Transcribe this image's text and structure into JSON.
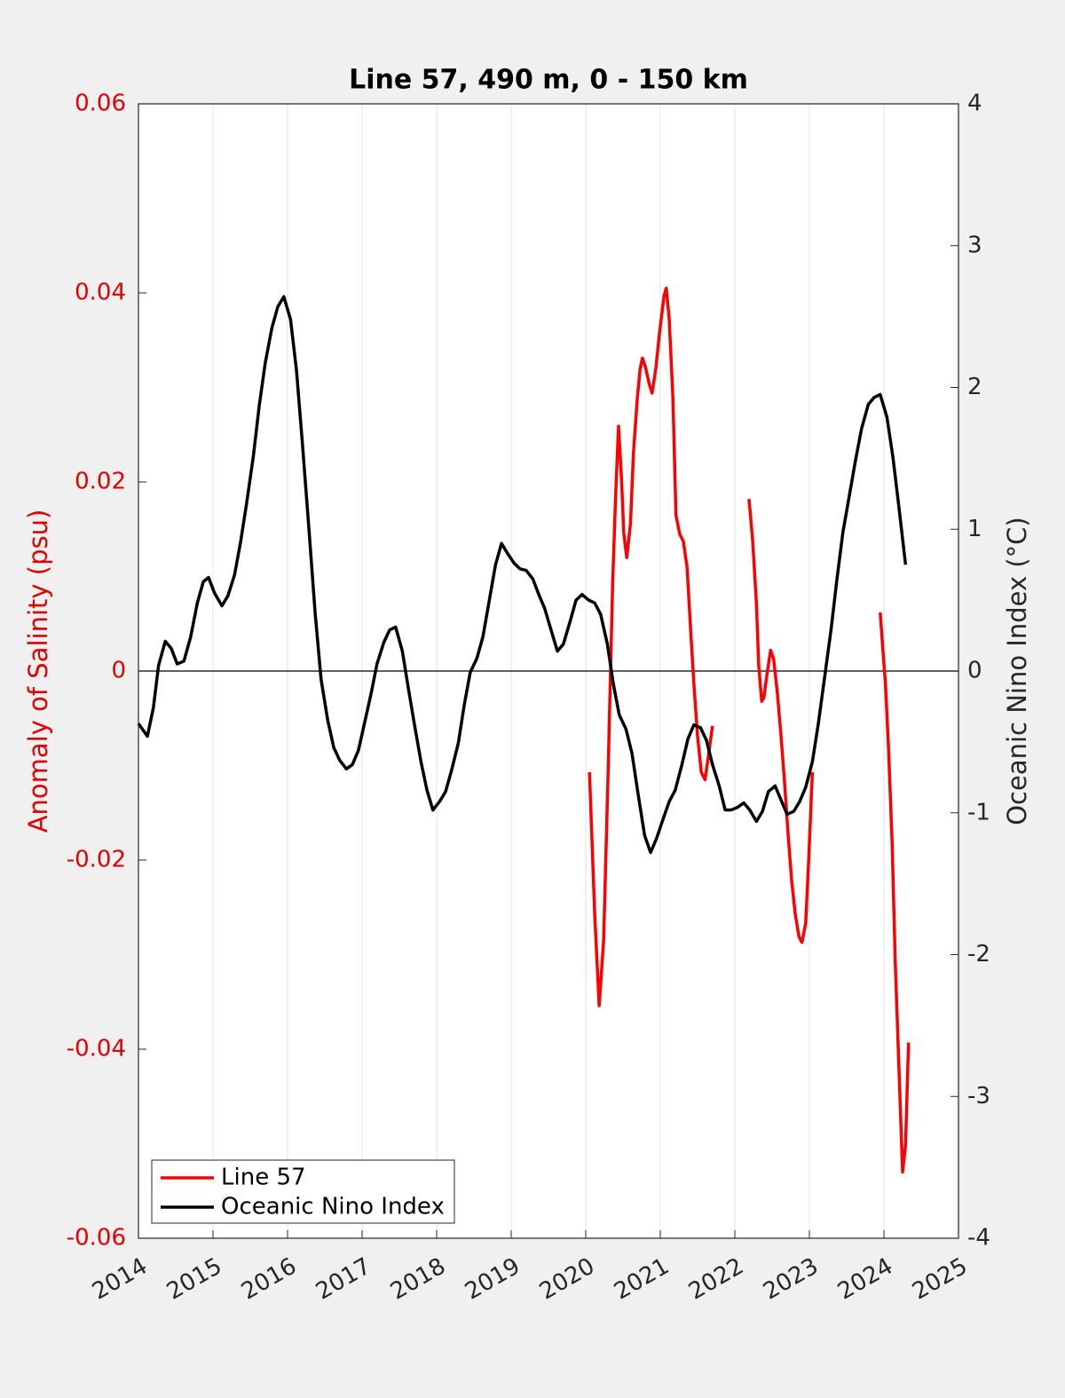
{
  "chart_data": {
    "type": "line",
    "title": "Line 57, 490 m, 0 - 150 km",
    "ylabel": "Anomaly of Salinity (psu)",
    "y2label": "Oceanic Nino Index (°C)",
    "xlim": [
      2014,
      2025
    ],
    "xticks": [
      2014,
      2015,
      2016,
      2017,
      2018,
      2019,
      2020,
      2021,
      2022,
      2023,
      2024,
      2025
    ],
    "ylim": [
      -0.06,
      0.06
    ],
    "yticks": [
      -0.06,
      -0.04,
      -0.02,
      0,
      0.02,
      0.04,
      0.06
    ],
    "y2lim": [
      -4,
      4
    ],
    "y2ticks": [
      -4,
      -3,
      -2,
      -1,
      0,
      1,
      2,
      3,
      4
    ],
    "ylabel_color": "#e60000",
    "grid": "x",
    "hline": 0,
    "legend": "lower left",
    "series": [
      {
        "name": "Line 57",
        "color": "#ff0000",
        "x": [
          2020.05,
          2020.12,
          2020.18,
          2020.24,
          2020.3,
          2020.36,
          2020.4,
          2020.44,
          2020.48,
          2020.51,
          2020.55,
          2020.6,
          2020.64,
          2020.69,
          2020.73,
          2020.76,
          2020.8,
          2020.85,
          2020.89,
          2020.94,
          2020.99,
          2021.05,
          2021.08,
          2021.12,
          2021.17,
          2021.21,
          2021.26,
          2021.31,
          2021.36,
          2021.4,
          2021.45,
          2021.5,
          2021.55,
          2021.6,
          2021.64,
          2021.7,
          2021.95,
          2022.19,
          2022.24,
          2022.29,
          2022.32,
          2022.36,
          2022.39,
          2022.43,
          2022.48,
          2022.52,
          2022.57,
          2022.62,
          2022.67,
          2022.71,
          2022.76,
          2022.81,
          2022.86,
          2022.9,
          2022.95,
          2022.99,
          2023.04,
          2023.5,
          2023.95,
          2023.99,
          2024.02,
          2024.06,
          2024.11,
          2024.15,
          2024.2,
          2024.25,
          2024.29,
          2024.33
        ],
        "values": [
          -0.0107,
          -0.0257,
          -0.0354,
          -0.0285,
          -0.0107,
          0.009,
          0.0184,
          0.0259,
          0.0203,
          0.0146,
          0.012,
          0.0156,
          0.0231,
          0.0287,
          0.032,
          0.0331,
          0.0322,
          0.0304,
          0.0294,
          0.032,
          0.0358,
          0.0397,
          0.0405,
          0.0372,
          0.0287,
          0.0165,
          0.0145,
          0.0137,
          0.0109,
          0.0053,
          -0.0013,
          -0.0069,
          -0.0107,
          -0.0115,
          -0.0093,
          -0.0058,
          null,
          0.0182,
          0.0137,
          0.0071,
          0.0006,
          -0.0032,
          -0.0028,
          -0.0004,
          0.0022,
          0.0013,
          -0.0023,
          -0.0069,
          -0.0121,
          -0.0168,
          -0.022,
          -0.0257,
          -0.0281,
          -0.0287,
          -0.0267,
          -0.0201,
          -0.0107,
          null,
          0.0062,
          0.0018,
          -0.0013,
          -0.0079,
          -0.0182,
          -0.0304,
          -0.0417,
          -0.053,
          -0.0501,
          -0.0393
        ]
      },
      {
        "name": "Oceanic Nino Index",
        "color": "#000000",
        "axis": "y2",
        "x": [
          2014.0,
          2014.12,
          2014.2,
          2014.27,
          2014.36,
          2014.44,
          2014.52,
          2014.61,
          2014.7,
          2014.79,
          2014.87,
          2014.94,
          2015.02,
          2015.12,
          2015.2,
          2015.29,
          2015.37,
          2015.45,
          2015.54,
          2015.62,
          2015.7,
          2015.79,
          2015.87,
          2015.95,
          2016.04,
          2016.12,
          2016.2,
          2016.29,
          2016.37,
          2016.45,
          2016.54,
          2016.62,
          2016.7,
          2016.79,
          2016.87,
          2016.95,
          2017.04,
          2017.12,
          2017.2,
          2017.29,
          2017.37,
          2017.45,
          2017.54,
          2017.62,
          2017.7,
          2017.79,
          2017.87,
          2017.95,
          2018.04,
          2018.12,
          2018.2,
          2018.29,
          2018.37,
          2018.45,
          2018.54,
          2018.62,
          2018.7,
          2018.79,
          2018.87,
          2018.95,
          2019.04,
          2019.12,
          2019.2,
          2019.29,
          2019.37,
          2019.45,
          2019.54,
          2019.62,
          2019.7,
          2019.79,
          2019.87,
          2019.95,
          2020.04,
          2020.12,
          2020.2,
          2020.29,
          2020.37,
          2020.45,
          2020.54,
          2020.62,
          2020.7,
          2020.79,
          2020.87,
          2020.95,
          2021.04,
          2021.12,
          2021.2,
          2021.29,
          2021.37,
          2021.45,
          2021.54,
          2021.62,
          2021.7,
          2021.79,
          2021.87,
          2021.95,
          2022.04,
          2022.12,
          2022.2,
          2022.29,
          2022.37,
          2022.45,
          2022.54,
          2022.62,
          2022.7,
          2022.79,
          2022.87,
          2022.95,
          2023.04,
          2023.12,
          2023.2,
          2023.29,
          2023.37,
          2023.45,
          2023.54,
          2023.62,
          2023.7,
          2023.79,
          2023.87,
          2023.95,
          2024.04,
          2024.12,
          2024.2,
          2024.29
        ],
        "values": [
          -0.37,
          -0.46,
          -0.26,
          0.04,
          0.21,
          0.16,
          0.05,
          0.07,
          0.24,
          0.48,
          0.63,
          0.66,
          0.55,
          0.46,
          0.53,
          0.68,
          0.91,
          1.18,
          1.51,
          1.87,
          2.17,
          2.42,
          2.57,
          2.64,
          2.48,
          2.12,
          1.6,
          0.98,
          0.41,
          -0.06,
          -0.35,
          -0.54,
          -0.63,
          -0.69,
          -0.66,
          -0.56,
          -0.35,
          -0.16,
          0.05,
          0.2,
          0.29,
          0.31,
          0.14,
          -0.12,
          -0.37,
          -0.64,
          -0.84,
          -0.98,
          -0.92,
          -0.85,
          -0.7,
          -0.51,
          -0.24,
          -0.01,
          0.09,
          0.24,
          0.48,
          0.75,
          0.9,
          0.83,
          0.76,
          0.72,
          0.71,
          0.65,
          0.54,
          0.44,
          0.28,
          0.14,
          0.19,
          0.35,
          0.5,
          0.54,
          0.5,
          0.48,
          0.4,
          0.19,
          -0.09,
          -0.31,
          -0.41,
          -0.58,
          -0.86,
          -1.16,
          -1.28,
          -1.18,
          -1.04,
          -0.92,
          -0.84,
          -0.66,
          -0.48,
          -0.38,
          -0.4,
          -0.49,
          -0.66,
          -0.81,
          -0.98,
          -0.98,
          -0.96,
          -0.93,
          -0.98,
          -1.06,
          -0.99,
          -0.85,
          -0.81,
          -0.91,
          -1.01,
          -0.99,
          -0.92,
          -0.82,
          -0.64,
          -0.37,
          -0.06,
          0.29,
          0.65,
          0.98,
          1.25,
          1.49,
          1.71,
          1.88,
          1.93,
          1.95,
          1.79,
          1.51,
          1.16,
          0.75
        ]
      }
    ]
  }
}
